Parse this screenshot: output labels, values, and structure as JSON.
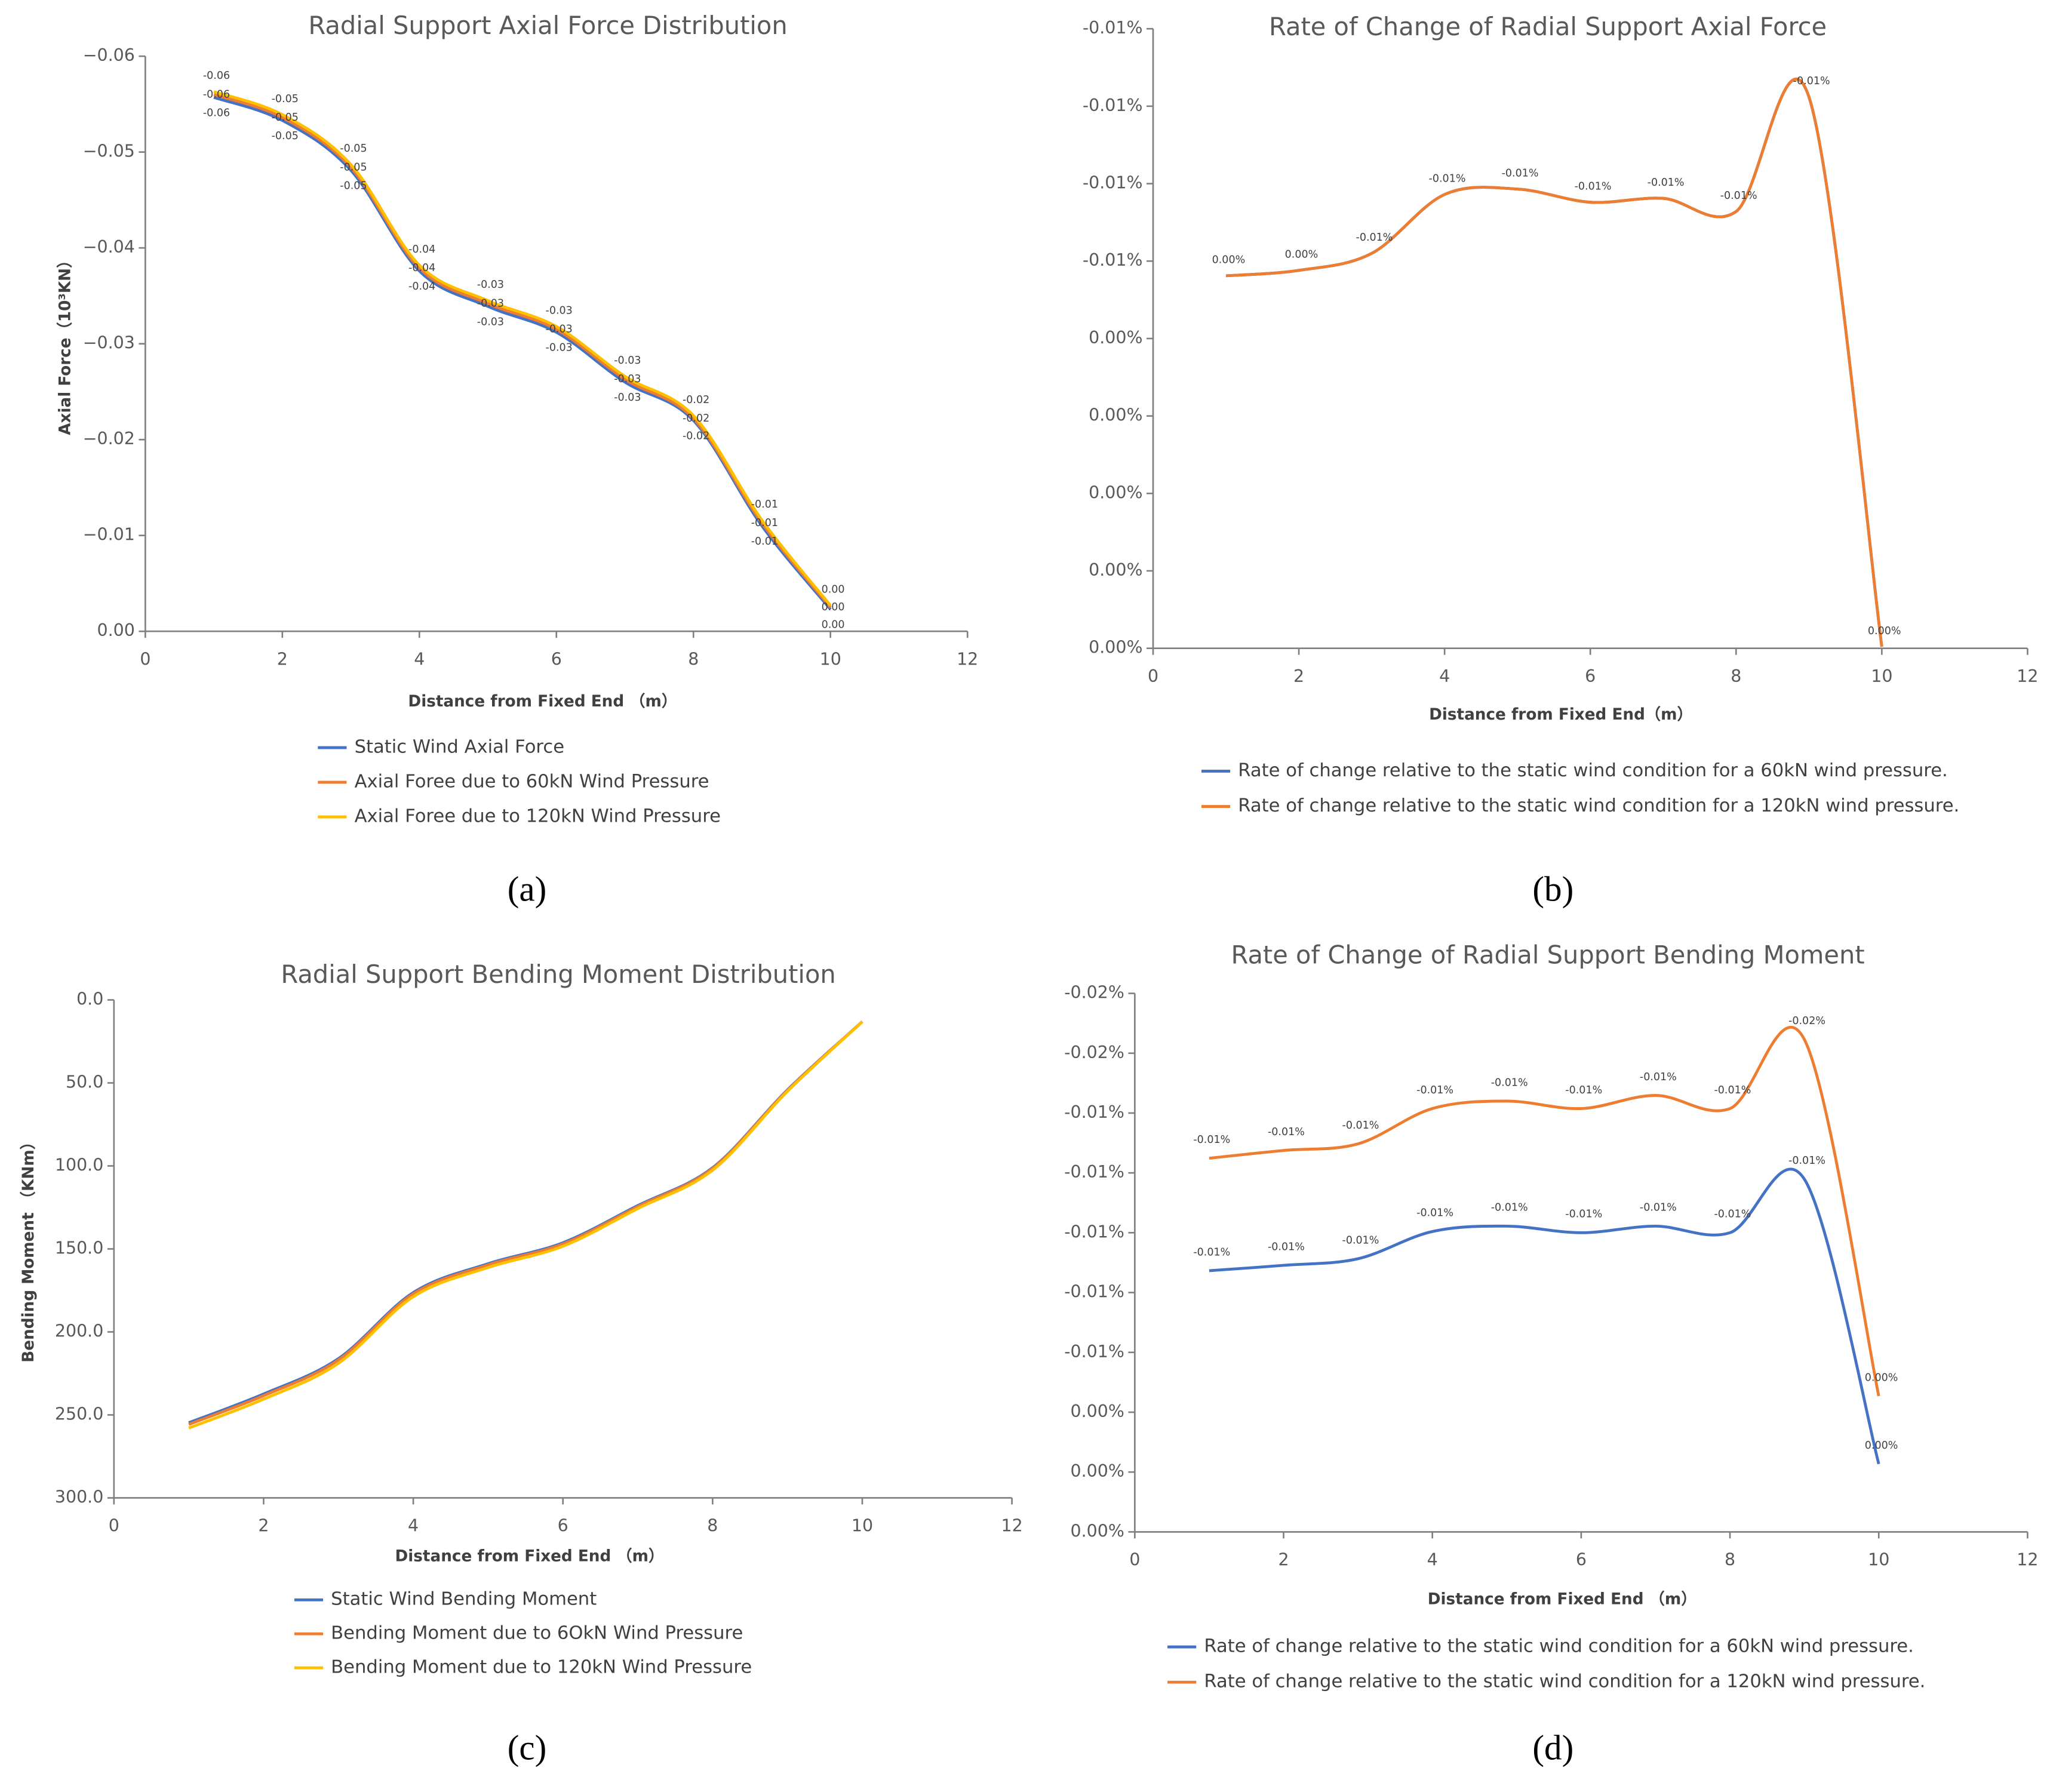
{
  "chart_data": [
    {
      "type": "line",
      "panel": "(a)",
      "title": "Radial Support Axial Force Distribution",
      "xlabel": "Distance from Fixed End （m）",
      "ylabel": "Axial Force（10³KN）",
      "x": [
        1,
        2,
        3,
        4,
        5,
        6,
        7,
        8,
        9,
        10
      ],
      "xlim": [
        0,
        12
      ],
      "xticks": [
        0,
        2,
        4,
        6,
        8,
        10,
        12
      ],
      "ylim": [
        0,
        -0.06
      ],
      "yticks": [
        {
          "value": 0,
          "label": "0.00"
        },
        {
          "value": -0.01,
          "label": "−0.01"
        },
        {
          "value": -0.02,
          "label": "−0.02"
        },
        {
          "value": -0.03,
          "label": "−0.03"
        },
        {
          "value": -0.04,
          "label": "−0.04"
        },
        {
          "value": -0.05,
          "label": "−0.05"
        },
        {
          "value": -0.06,
          "label": "−0.06"
        }
      ],
      "series": [
        {
          "name": "Static Wind Axial Force",
          "color": "#4472c4",
          "values": [
            -0.0557,
            -0.0533,
            -0.0481,
            -0.0376,
            -0.0339,
            -0.0312,
            -0.026,
            -0.022,
            -0.011,
            -0.0023
          ],
          "value_labels": [
            "-0.06",
            "-0.05",
            "-0.05",
            "-0.04",
            "-0.03",
            "-0.03",
            "-0.03",
            "-0.02",
            "-0.01",
            "0.00"
          ]
        },
        {
          "name": "Axial Foree due to 60kN Wind Pressure",
          "color": "#ed7d31",
          "values": [
            -0.056,
            -0.0536,
            -0.0484,
            -0.0379,
            -0.0342,
            -0.0315,
            -0.0263,
            -0.0222,
            -0.0113,
            -0.0025
          ],
          "value_labels": [
            "-0.06",
            "-0.05",
            "-0.05",
            "-0.04",
            "-0.03",
            "-0.03",
            "-0.03",
            "-0.02",
            "-0.01",
            "0.00"
          ]
        },
        {
          "name": "Axial Foree due to 120kN Wind Pressure",
          "color": "#ffc000",
          "values": [
            -0.0563,
            -0.0539,
            -0.0487,
            -0.0382,
            -0.0345,
            -0.0318,
            -0.0266,
            -0.0225,
            -0.0116,
            -0.0027
          ],
          "value_labels": [
            "-0.06",
            "-0.05",
            "-0.05",
            "-0.04",
            "-0.03",
            "-0.03",
            "-0.03",
            "-0.02",
            "-0.01",
            "0.00"
          ]
        }
      ]
    },
    {
      "type": "line",
      "panel": "(b)",
      "title": "Rate of Change of Radial Support Axial Force",
      "xlabel": "Distance from Fixed End（m）",
      "x": [
        1,
        2,
        3,
        4,
        5,
        6,
        7,
        8,
        9,
        10
      ],
      "xlim": [
        0,
        12
      ],
      "xticks": [
        0,
        2,
        4,
        6,
        8,
        10,
        12
      ],
      "ylim": [
        0,
        -0.008
      ],
      "yticks": [
        {
          "value": 0,
          "label": "0.00%"
        },
        {
          "value": -0.001,
          "label": "0.00%"
        },
        {
          "value": -0.002,
          "label": "0.00%"
        },
        {
          "value": -0.003,
          "label": "0.00%"
        },
        {
          "value": -0.004,
          "label": "0.00%"
        },
        {
          "value": -0.005,
          "label": "-0.01%"
        },
        {
          "value": -0.006,
          "label": "-0.01%"
        },
        {
          "value": -0.007,
          "label": "-0.01%"
        },
        {
          "value": -0.008,
          "label": "-0.01%"
        }
      ],
      "series": [
        {
          "name": "Rate of change relative to the static wind condition for a 60kN wind pressure.",
          "color": "#4472c4",
          "values": [
            -0.00481,
            -0.00488,
            -0.0051,
            -0.00586,
            -0.00593,
            -0.00576,
            -0.00581,
            -0.00564,
            -0.00712,
            -2e-05
          ]
        },
        {
          "name": "Rate of change relative to the static wind condition for a 120kN wind pressure.",
          "color": "#ed7d31",
          "values": [
            -0.00481,
            -0.00488,
            -0.0051,
            -0.00586,
            -0.00593,
            -0.00576,
            -0.00581,
            -0.00564,
            -0.00712,
            -2e-05
          ],
          "value_labels": [
            "0.00%",
            "0.00%",
            "-0.01%",
            "-0.01%",
            "-0.01%",
            "-0.01%",
            "-0.01%",
            "-0.01%",
            "-0.01%",
            "0.00%"
          ]
        }
      ]
    },
    {
      "type": "line",
      "panel": "(c)",
      "title": "Radial Support Bending Moment Distribution",
      "xlabel": "Distance from Fixed End （m）",
      "ylabel": "Bending Moment （KNm）",
      "x": [
        1,
        2,
        3,
        4,
        5,
        6,
        7,
        8,
        9,
        10
      ],
      "xlim": [
        0,
        12
      ],
      "xticks": [
        0,
        2,
        4,
        6,
        8,
        10,
        12
      ],
      "ylim": [
        300,
        0
      ],
      "yticks": [
        {
          "value": 0,
          "label": "0.0"
        },
        {
          "value": 50,
          "label": "50.0"
        },
        {
          "value": 100,
          "label": "100.0"
        },
        {
          "value": 150,
          "label": "150.0"
        },
        {
          "value": 200,
          "label": "200.0"
        },
        {
          "value": 250,
          "label": "250.0"
        },
        {
          "value": 300,
          "label": "300.0"
        }
      ],
      "series": [
        {
          "name": "Static Wind Bending Moment",
          "color": "#4472c4",
          "values": [
            254.7,
            237.4,
            216.1,
            176.3,
            158.9,
            146.3,
            123.9,
            101.1,
            54.2,
            13.1
          ]
        },
        {
          "name": "Bending Moment due to 6OkN Wind Pressure",
          "color": "#ed7d31",
          "values": [
            255.7,
            238.4,
            216.9,
            177.1,
            159.6,
            147.0,
            124.5,
            101.5,
            54.5,
            13.1
          ]
        },
        {
          "name": "Bending Moment due to 120kN Wind Pressure",
          "color": "#ffc000",
          "values": [
            257.9,
            240.5,
            218.9,
            178.8,
            161.2,
            148.4,
            125.7,
            102.6,
            55.1,
            13.2
          ]
        }
      ]
    },
    {
      "type": "line",
      "panel": "(d)",
      "title": "Rate of Change of Radial Support Bending Moment",
      "xlabel": "Distance from Fixed End （m）",
      "x": [
        1,
        2,
        3,
        4,
        5,
        6,
        7,
        8,
        9,
        10
      ],
      "xlim": [
        0,
        12
      ],
      "xticks": [
        0,
        2,
        4,
        6,
        8,
        10,
        12
      ],
      "ylim": [
        0,
        -0.018
      ],
      "yticks": [
        {
          "value": 0,
          "label": "0.00%"
        },
        {
          "value": -0.002,
          "label": "0.00%"
        },
        {
          "value": -0.004,
          "label": "0.00%"
        },
        {
          "value": -0.006,
          "label": "-0.01%"
        },
        {
          "value": -0.008,
          "label": "-0.01%"
        },
        {
          "value": -0.01,
          "label": "-0.01%"
        },
        {
          "value": -0.012,
          "label": "-0.01%"
        },
        {
          "value": -0.014,
          "label": "-0.01%"
        },
        {
          "value": -0.016,
          "label": "-0.02%"
        },
        {
          "value": -0.018,
          "label": "-0.02%"
        }
      ],
      "series": [
        {
          "name": "Rate of change relative to the static wind condition for a 60kN wind pressure.",
          "color": "#4472c4",
          "values": [
            -0.00873,
            -0.00891,
            -0.00913,
            -0.01004,
            -0.01022,
            -0.01,
            -0.01022,
            -0.01,
            -0.01179,
            -0.00227
          ],
          "value_labels": [
            "-0.01%",
            "-0.01%",
            "-0.01%",
            "-0.01%",
            "-0.01%",
            "-0.01%",
            "-0.01%",
            "-0.01%",
            "-0.01%",
            "0.00%"
          ]
        },
        {
          "name": "Rate of change relative to the static wind condition for a 120kN wind pressure.",
          "color": "#ed7d31",
          "values": [
            -0.01249,
            -0.01275,
            -0.01297,
            -0.01415,
            -0.0144,
            -0.01415,
            -0.01459,
            -0.01415,
            -0.01646,
            -0.00454
          ],
          "value_labels": [
            "-0.01%",
            "-0.01%",
            "-0.01%",
            "-0.01%",
            "-0.01%",
            "-0.01%",
            "-0.01%",
            "-0.01%",
            "-0.02%",
            "0.00%"
          ]
        }
      ]
    }
  ]
}
